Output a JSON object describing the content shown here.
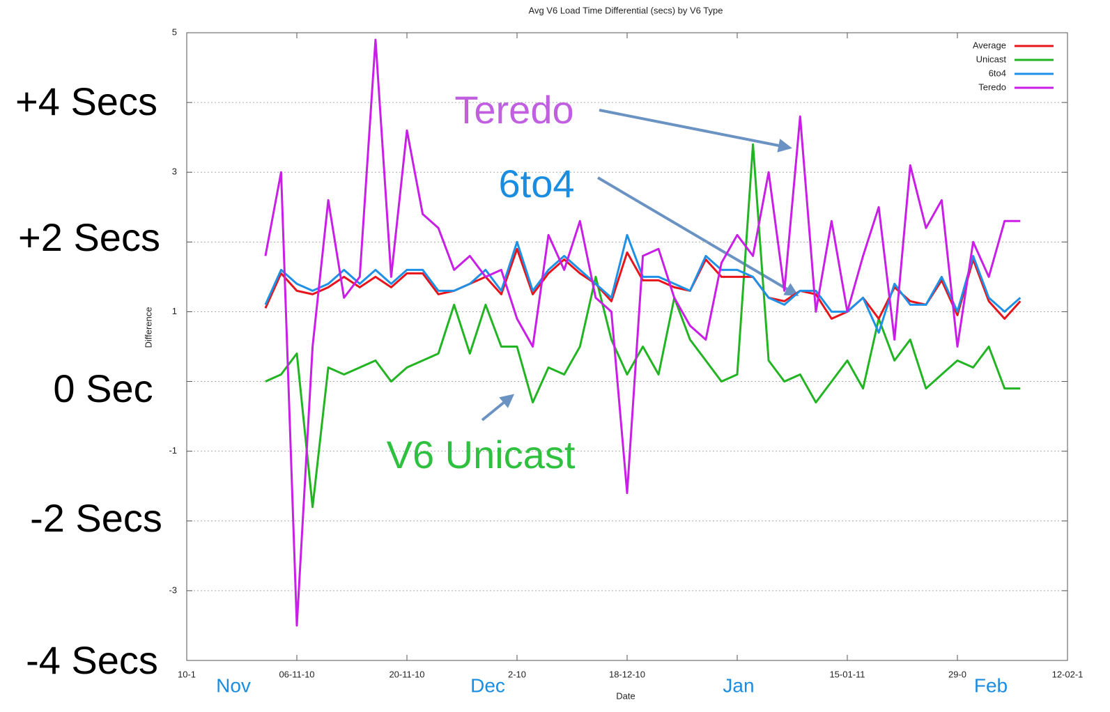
{
  "chart_data": {
    "type": "line",
    "title": "Avg V6 Load Time Differential (secs) by V6 Type",
    "xlabel": "Date",
    "ylabel": "Difference",
    "x": [
      "2010-11-02",
      "2010-11-04",
      "2010-11-06",
      "2010-11-08",
      "2010-11-10",
      "2010-11-12",
      "2010-11-14",
      "2010-11-16",
      "2010-11-18",
      "2010-11-20",
      "2010-11-22",
      "2010-11-24",
      "2010-11-26",
      "2010-11-28",
      "2010-11-30",
      "2010-12-02",
      "2010-12-04",
      "2010-12-06",
      "2010-12-08",
      "2010-12-10",
      "2010-12-12",
      "2010-12-14",
      "2010-12-16",
      "2010-12-18",
      "2010-12-20",
      "2010-12-22",
      "2010-12-24",
      "2010-12-26",
      "2010-12-28",
      "2010-12-30",
      "2011-01-01",
      "2011-01-03",
      "2011-01-05",
      "2011-01-07",
      "2011-01-09",
      "2011-01-11",
      "2011-01-13",
      "2011-01-15",
      "2011-01-17",
      "2011-01-19",
      "2011-01-21",
      "2011-01-23",
      "2011-01-25",
      "2011-01-27",
      "2011-01-29",
      "2011-01-31",
      "2011-02-02",
      "2011-02-04",
      "2011-02-06"
    ],
    "series": [
      {
        "name": "Average",
        "color": "#e8141c",
        "values": [
          1.05,
          1.55,
          1.3,
          1.25,
          1.35,
          1.5,
          1.35,
          1.5,
          1.35,
          1.55,
          1.55,
          1.25,
          1.3,
          1.4,
          1.5,
          1.25,
          1.9,
          1.25,
          1.55,
          1.75,
          1.55,
          1.4,
          1.15,
          1.85,
          1.45,
          1.45,
          1.35,
          1.3,
          1.75,
          1.5,
          1.5,
          1.5,
          1.2,
          1.15,
          1.3,
          1.25,
          0.9,
          1.0,
          1.2,
          0.9,
          1.35,
          1.15,
          1.1,
          1.45,
          0.95,
          1.75,
          1.15,
          0.9,
          1.15
        ]
      },
      {
        "name": "Unicast",
        "color": "#22b422",
        "values": [
          0,
          0.1,
          0.4,
          -1.8,
          0.2,
          0.1,
          0.2,
          0.3,
          0,
          0.2,
          0.3,
          0.4,
          1.1,
          0.4,
          1.1,
          0.5,
          0.5,
          -0.3,
          0.2,
          0.1,
          0.5,
          1.5,
          0.6,
          0.1,
          0.5,
          0.1,
          1.2,
          0.6,
          0.3,
          0,
          0.1,
          3.4,
          0.3,
          0,
          0.1,
          -0.3,
          0,
          0.3,
          -0.1,
          0.9,
          0.3,
          0.6,
          -0.1,
          0.1,
          0.3,
          0.2,
          0.5,
          -0.1,
          -0.1
        ]
      },
      {
        "name": "6to4",
        "color": "#1e90e6",
        "values": [
          1.1,
          1.6,
          1.4,
          1.3,
          1.4,
          1.6,
          1.4,
          1.6,
          1.4,
          1.6,
          1.6,
          1.3,
          1.3,
          1.4,
          1.6,
          1.3,
          2.0,
          1.3,
          1.6,
          1.8,
          1.6,
          1.4,
          1.2,
          2.1,
          1.5,
          1.5,
          1.4,
          1.3,
          1.8,
          1.6,
          1.6,
          1.5,
          1.2,
          1.1,
          1.3,
          1.3,
          1.0,
          1.0,
          1.2,
          0.7,
          1.4,
          1.1,
          1.1,
          1.5,
          1.0,
          1.8,
          1.2,
          1.0,
          1.2
        ]
      },
      {
        "name": "Teredo",
        "color": "#c81ee6",
        "values": [
          1.8,
          3.0,
          -3.5,
          0.5,
          2.6,
          1.2,
          1.5,
          4.9,
          1.5,
          3.6,
          2.4,
          2.2,
          1.6,
          1.8,
          1.5,
          1.6,
          0.9,
          0.5,
          2.1,
          1.6,
          2.3,
          1.2,
          1.0,
          -1.6,
          1.8,
          1.9,
          1.2,
          0.8,
          0.6,
          1.7,
          2.1,
          1.8,
          3.0,
          1.3,
          3.8,
          1.0,
          2.3,
          1.0,
          1.8,
          2.5,
          0.6,
          3.1,
          2.2,
          2.6,
          0.5,
          2.0,
          1.5,
          2.3,
          2.3
        ]
      }
    ],
    "xlim": [
      "2010-10-23",
      "2011-02-12"
    ],
    "xticks": [
      {
        "value": "2010-10-23",
        "label": "10-1"
      },
      {
        "value": "2010-11-06",
        "label": "06-11-10"
      },
      {
        "value": "2010-11-20",
        "label": "20-11-10"
      },
      {
        "value": "2010-12-04",
        "label": "2-10"
      },
      {
        "value": "2010-12-18",
        "label": "18-12-10"
      },
      {
        "value": "2011-01-01",
        "label": null
      },
      {
        "value": "2011-01-15",
        "label": "15-01-11"
      },
      {
        "value": "2011-01-29",
        "label": "29-0"
      },
      {
        "value": "2011-02-12",
        "label": "12-02-1"
      }
    ],
    "ylim": [
      -4,
      5
    ],
    "yticks": [
      5,
      {
        "value": 4,
        "label": null
      },
      3,
      {
        "value": 2,
        "label": null
      },
      1,
      {
        "value": 0,
        "label": null
      },
      -1,
      {
        "value": -2,
        "label": null
      },
      -3,
      {
        "value": -4,
        "label": null
      }
    ],
    "grid": true,
    "legend": "upper right",
    "annotations": [
      {
        "text": "+4 Secs",
        "color": "#000000"
      },
      {
        "text": "+2 Secs",
        "color": "#000000"
      },
      {
        "text": "0 Sec",
        "color": "#000000"
      },
      {
        "text": "-2 Secs",
        "color": "#000000"
      },
      {
        "text": "-4 Secs",
        "color": "#000000"
      },
      {
        "text": "Nov",
        "color": "#1a8de0"
      },
      {
        "text": "Dec",
        "color": "#1a8de0"
      },
      {
        "text": "Jan",
        "color": "#1a8de0"
      },
      {
        "text": "Feb",
        "color": "#1a8de0"
      },
      {
        "text": "Teredo",
        "color": "#c060e0"
      },
      {
        "text": "6to4",
        "color": "#1a8de0"
      },
      {
        "text": "V6 Unicast",
        "color": "#30c040"
      }
    ]
  }
}
